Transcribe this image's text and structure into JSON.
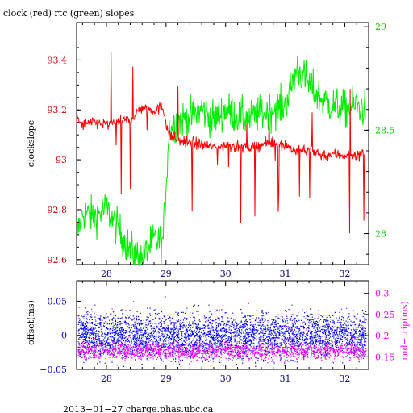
{
  "chart_data": [
    {
      "type": "line",
      "title": "clock (red) rtc (green) slopes",
      "xlabel": "",
      "ylabel": "clockslope",
      "y2label": "",
      "xlim": [
        27.5,
        32.4
      ],
      "ylim": [
        92.58,
        93.55
      ],
      "y2lim": [
        27.85,
        29.02
      ],
      "x_ticks": [
        28,
        29,
        30,
        31,
        32
      ],
      "x_tick_labels": [
        "28",
        "29",
        "30",
        "31",
        "32"
      ],
      "y_ticks": [
        92.6,
        92.8,
        93,
        93.2,
        93.4
      ],
      "y_tick_labels": [
        "92.6",
        "92.8",
        "93",
        "93.2",
        "93.4"
      ],
      "y2_ticks": [
        28,
        28.5,
        29
      ],
      "y2_tick_labels": [
        "28",
        "28.5",
        "29"
      ],
      "grid": false,
      "colors": {
        "series_red": "#ff0000",
        "series_green": "#00ee00",
        "axis_left": "#cc0000",
        "axis_right": "#00cc00"
      },
      "series": [
        {
          "axis": "left",
          "color": "#ff0000",
          "x": [
            27.5,
            27.6,
            27.8,
            28.0,
            28.2,
            28.4,
            28.6,
            28.8,
            28.95,
            29.05,
            29.2,
            29.4,
            29.6,
            29.8,
            30.0,
            30.2,
            30.4,
            30.6,
            30.8,
            31.0,
            31.2,
            31.4,
            31.6,
            31.8,
            32.0,
            32.2,
            32.35
          ],
          "y": [
            93.16,
            93.14,
            93.15,
            93.14,
            93.15,
            93.16,
            93.21,
            93.2,
            93.21,
            93.1,
            93.08,
            93.07,
            93.06,
            93.05,
            93.06,
            93.05,
            93.05,
            93.06,
            93.07,
            93.06,
            93.03,
            93.04,
            93.02,
            93.02,
            93.02,
            93.02,
            93.03
          ]
        },
        {
          "axis": "right",
          "color": "#00ee00",
          "x": [
            27.5,
            27.6,
            27.8,
            28.0,
            28.2,
            28.4,
            28.6,
            28.8,
            28.95,
            29.05,
            29.2,
            29.4,
            29.6,
            29.8,
            30.0,
            30.2,
            30.4,
            30.6,
            30.8,
            31.0,
            31.2,
            31.4,
            31.6,
            31.8,
            32.0,
            32.2,
            32.35
          ],
          "y": [
            27.98,
            28.1,
            28.08,
            28.12,
            28.02,
            27.92,
            27.88,
            27.97,
            27.96,
            28.5,
            28.55,
            28.56,
            28.6,
            28.55,
            28.6,
            28.57,
            28.55,
            28.58,
            28.6,
            28.62,
            28.8,
            28.72,
            28.65,
            28.62,
            28.6,
            28.62,
            28.6
          ]
        }
      ]
    },
    {
      "type": "scatter",
      "title": "",
      "xlabel": "",
      "ylabel": "offset(ms)",
      "y2label": "rnd−trip(ms)",
      "xlim": [
        27.5,
        32.4
      ],
      "ylim": [
        -0.05,
        0.08
      ],
      "y2lim": [
        0.12,
        0.33
      ],
      "x_ticks": [
        28,
        29,
        30,
        31,
        32
      ],
      "x_tick_labels": [
        "28",
        "29",
        "30",
        "31",
        "32"
      ],
      "y_ticks": [
        -0.05,
        0,
        0.05
      ],
      "y_tick_labels": [
        "−0.05",
        "0",
        "0.05"
      ],
      "y2_ticks": [
        0.15,
        0.2,
        0.25,
        0.3
      ],
      "y2_tick_labels": [
        "0.15",
        "0.2",
        "0.25",
        "0.3"
      ],
      "grid": false,
      "colors": {
        "offset": "#0000ff",
        "rndtrip": "#ff00ff"
      },
      "series": [
        {
          "axis": "left",
          "color": "#0000ff",
          "mean": 0.0,
          "spread": 0.03
        },
        {
          "axis": "right",
          "color": "#ff00ff",
          "mean": 0.165,
          "spread": 0.02
        }
      ]
    }
  ],
  "footer": "2013−01−27 charge.phas.ubc.ca"
}
